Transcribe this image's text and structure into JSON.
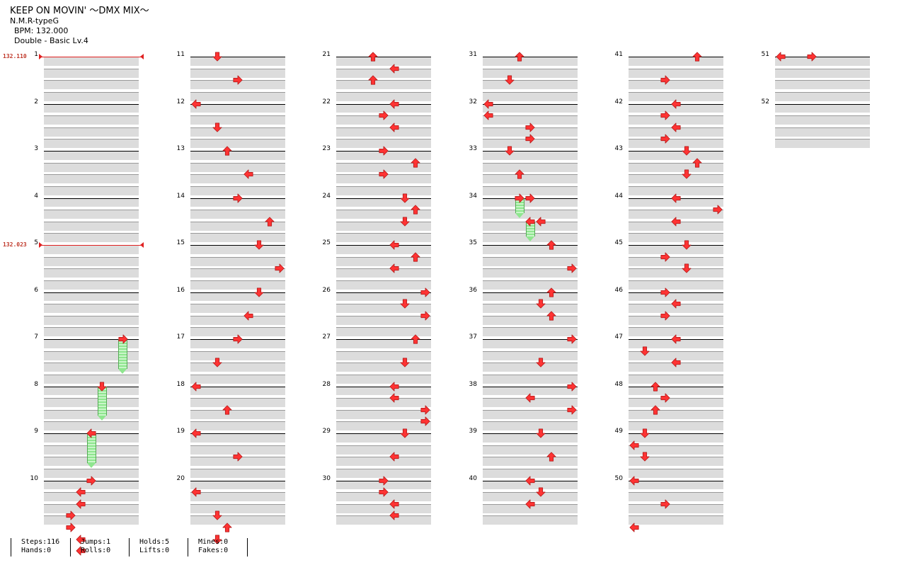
{
  "header": {
    "title": "KEEP ON MOVIN' ～DMX MIX～",
    "artist": "N.M.R-typeG",
    "bpm": "BPM: 132.000",
    "difficulty": "Double - Basic Lv.4"
  },
  "colors": {
    "arrow": "#ff3333",
    "arrow_edge": "#b51d1d",
    "hold": "#8fe68f",
    "bpm": "#e02020",
    "lane": "#dcdcdc"
  },
  "bpm_changes": [
    {
      "measure": 1,
      "label": "132.110"
    },
    {
      "measure": 5,
      "label": "132.023"
    }
  ],
  "measure_numbers": [
    "1",
    "2",
    "3",
    "4",
    "5",
    "6",
    "7",
    "8",
    "9",
    "10",
    "11",
    "12",
    "13",
    "14",
    "15",
    "16",
    "17",
    "18",
    "19",
    "20",
    "21",
    "22",
    "23",
    "24",
    "25",
    "26",
    "27",
    "28",
    "29",
    "30",
    "31",
    "32",
    "33",
    "34",
    "35",
    "36",
    "37",
    "38",
    "39",
    "40",
    "41",
    "42",
    "43",
    "44",
    "45",
    "46",
    "47",
    "48",
    "49",
    "50",
    "51",
    "52"
  ],
  "notes": [
    [
      10,
      0,
      4,
      "R"
    ],
    [
      10,
      1,
      3,
      "L"
    ],
    [
      10,
      2,
      3,
      "L"
    ],
    [
      10,
      3,
      2,
      "R"
    ],
    [
      10,
      4,
      2,
      "R"
    ],
    [
      10,
      5,
      3,
      "L"
    ],
    [
      10,
      6,
      3,
      "L"
    ],
    [
      11,
      0,
      2,
      "D"
    ],
    [
      11,
      2,
      4,
      "R"
    ],
    [
      12,
      0,
      0,
      "L"
    ],
    [
      12,
      2,
      2,
      "D"
    ],
    [
      13,
      0,
      3,
      "U"
    ],
    [
      13,
      2,
      5,
      "L"
    ],
    [
      14,
      0,
      4,
      "R"
    ],
    [
      14,
      2,
      7,
      "U"
    ],
    [
      15,
      0,
      6,
      "D"
    ],
    [
      15,
      2,
      8,
      "R"
    ],
    [
      16,
      0,
      6,
      "D"
    ],
    [
      16,
      2,
      5,
      "L"
    ],
    [
      17,
      0,
      4,
      "R"
    ],
    [
      17,
      2,
      2,
      "D"
    ],
    [
      18,
      0,
      0,
      "L"
    ],
    [
      18,
      2,
      3,
      "U"
    ],
    [
      19,
      0,
      0,
      "L"
    ],
    [
      19,
      2,
      4,
      "R"
    ],
    [
      20,
      1,
      0,
      "L"
    ],
    [
      20,
      3,
      2,
      "D"
    ],
    [
      20,
      4,
      3,
      "U"
    ],
    [
      20,
      5,
      2,
      "D"
    ],
    [
      21,
      0,
      3,
      "U"
    ],
    [
      21,
      1,
      5,
      "L"
    ],
    [
      21,
      2,
      3,
      "U"
    ],
    [
      22,
      0,
      5,
      "L"
    ],
    [
      22,
      1,
      4,
      "R"
    ],
    [
      22,
      2,
      5,
      "L"
    ],
    [
      23,
      0,
      4,
      "R"
    ],
    [
      23,
      1,
      7,
      "U"
    ],
    [
      23,
      2,
      4,
      "R"
    ],
    [
      24,
      0,
      6,
      "D"
    ],
    [
      24,
      1,
      7,
      "U"
    ],
    [
      24,
      2,
      6,
      "D"
    ],
    [
      25,
      0,
      5,
      "L"
    ],
    [
      25,
      1,
      7,
      "U"
    ],
    [
      25,
      2,
      5,
      "L"
    ],
    [
      26,
      0,
      8,
      "R"
    ],
    [
      26,
      1,
      6,
      "D"
    ],
    [
      26,
      2,
      8,
      "R"
    ],
    [
      27,
      0,
      7,
      "U"
    ],
    [
      27,
      2,
      6,
      "D"
    ],
    [
      28,
      0,
      5,
      "L"
    ],
    [
      28,
      1,
      5,
      "L"
    ],
    [
      28,
      2,
      8,
      "R"
    ],
    [
      28,
      3,
      8,
      "R"
    ],
    [
      29,
      0,
      6,
      "D"
    ],
    [
      29,
      2,
      5,
      "L"
    ],
    [
      30,
      0,
      4,
      "R"
    ],
    [
      30,
      1,
      4,
      "R"
    ],
    [
      30,
      2,
      5,
      "L"
    ],
    [
      30,
      3,
      5,
      "L"
    ],
    [
      31,
      0,
      3,
      "U"
    ],
    [
      31,
      2,
      2,
      "D"
    ],
    [
      32,
      0,
      0,
      "L"
    ],
    [
      32,
      1,
      0,
      "L"
    ],
    [
      32,
      2,
      4,
      "R"
    ],
    [
      32,
      3,
      4,
      "R"
    ],
    [
      33,
      0,
      2,
      "D"
    ],
    [
      33,
      2,
      3,
      "U"
    ],
    [
      34,
      0,
      4,
      "R"
    ],
    [
      34,
      2,
      5,
      "L"
    ],
    [
      35,
      0,
      6,
      "U"
    ],
    [
      35,
      2,
      8,
      "R"
    ],
    [
      36,
      0,
      6,
      "U"
    ],
    [
      36,
      1,
      5,
      "D"
    ],
    [
      36,
      2,
      6,
      "U"
    ],
    [
      37,
      0,
      8,
      "R"
    ],
    [
      37,
      2,
      5,
      "D"
    ],
    [
      38,
      0,
      8,
      "R"
    ],
    [
      38,
      1,
      4,
      "L"
    ],
    [
      38,
      2,
      8,
      "R"
    ],
    [
      39,
      0,
      5,
      "D"
    ],
    [
      39,
      2,
      6,
      "U"
    ],
    [
      40,
      0,
      4,
      "L"
    ],
    [
      40,
      1,
      5,
      "D"
    ],
    [
      40,
      2,
      4,
      "L"
    ],
    [
      41,
      0,
      6,
      "U"
    ],
    [
      41,
      2,
      3,
      "R"
    ],
    [
      42,
      0,
      4,
      "L"
    ],
    [
      42,
      1,
      3,
      "R"
    ],
    [
      42,
      2,
      4,
      "L"
    ],
    [
      42,
      3,
      3,
      "R"
    ],
    [
      43,
      0,
      5,
      "D"
    ],
    [
      43,
      1,
      6,
      "U"
    ],
    [
      43,
      2,
      5,
      "D"
    ],
    [
      44,
      0,
      4,
      "L"
    ],
    [
      44,
      1,
      8,
      "R"
    ],
    [
      44,
      2,
      4,
      "L"
    ],
    [
      45,
      0,
      5,
      "D"
    ],
    [
      45,
      1,
      3,
      "R"
    ],
    [
      45,
      2,
      5,
      "D"
    ],
    [
      46,
      0,
      3,
      "R"
    ],
    [
      46,
      1,
      4,
      "L"
    ],
    [
      46,
      2,
      3,
      "R"
    ],
    [
      47,
      0,
      4,
      "L"
    ],
    [
      47,
      1,
      1,
      "D"
    ],
    [
      47,
      2,
      4,
      "L"
    ],
    [
      48,
      0,
      2,
      "U"
    ],
    [
      48,
      1,
      3,
      "R"
    ],
    [
      48,
      2,
      2,
      "U"
    ],
    [
      49,
      0,
      1,
      "D"
    ],
    [
      49,
      1,
      0,
      "L"
    ],
    [
      49,
      2,
      1,
      "D"
    ],
    [
      50,
      0,
      0,
      "L"
    ],
    [
      50,
      2,
      3,
      "R"
    ],
    [
      50,
      4,
      0,
      "L"
    ],
    [
      51,
      0,
      0,
      "L"
    ],
    [
      51,
      0,
      3,
      "R"
    ]
  ],
  "holds": [
    [
      7,
      0,
      7,
      "R",
      2.5
    ],
    [
      8,
      0,
      5,
      "D",
      2.5
    ],
    [
      9,
      0,
      4,
      "L",
      2.5
    ],
    [
      34,
      0,
      3,
      "R",
      1.3
    ],
    [
      34,
      2,
      4,
      "L",
      1.3
    ]
  ],
  "stats": [
    {
      "a": "Steps:116",
      "b": "Hands:0"
    },
    {
      "a": "Jumps:1",
      "b": "Rolls:0"
    },
    {
      "a": "Holds:5",
      "b": "Lifts:0"
    },
    {
      "a": "Mines:0",
      "b": "Fakes:0"
    }
  ]
}
